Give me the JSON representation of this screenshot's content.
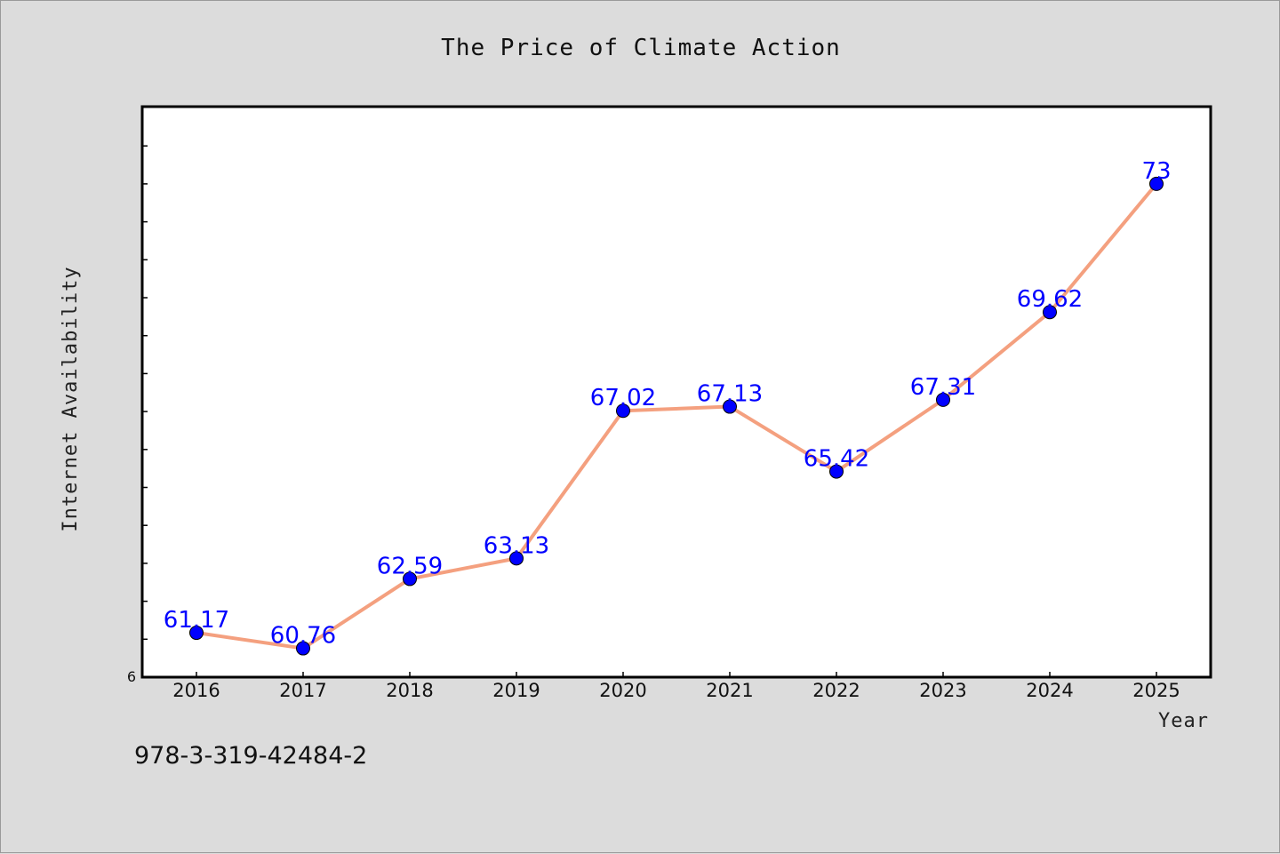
{
  "chart_data": {
    "type": "line",
    "title": "The Price of Climate Action",
    "xlabel": "Year",
    "ylabel": "Internet Availability",
    "x": [
      "2016",
      "2017",
      "2018",
      "2019",
      "2020",
      "2021",
      "2022",
      "2023",
      "2024",
      "2025"
    ],
    "series": [
      {
        "values": [
          61.17,
          60.76,
          62.59,
          63.13,
          67.02,
          67.13,
          65.42,
          67.31,
          69.62,
          73
        ],
        "data_labels": [
          "61.17",
          "60.76",
          "62.59",
          "63.13",
          "67.02",
          "67.13",
          "65.42",
          "67.31",
          "69.62",
          "73"
        ],
        "line_color": "#f4a07f",
        "marker_color": "#0000ff"
      }
    ],
    "yticks_labeled": [
      "6"
    ],
    "ylim": [
      60,
      75
    ],
    "grid": false,
    "legend": "none"
  },
  "footer": {
    "code": "978-3-319-42484-2"
  }
}
